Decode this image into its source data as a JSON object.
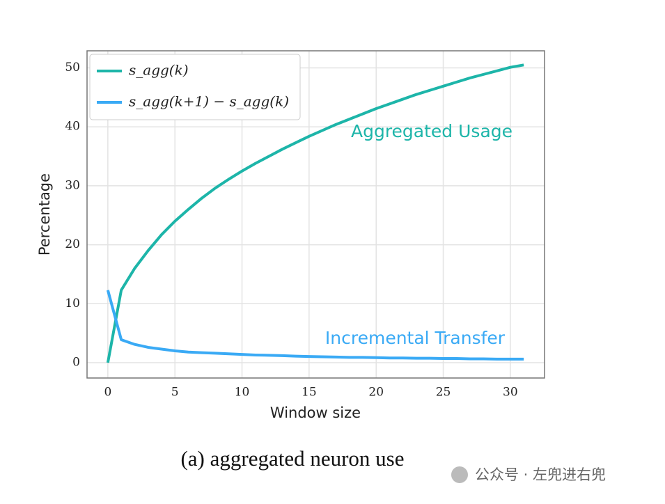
{
  "chart_data": {
    "type": "line",
    "x": [
      0,
      1,
      2,
      3,
      4,
      5,
      6,
      7,
      8,
      9,
      10,
      11,
      12,
      13,
      14,
      15,
      16,
      17,
      18,
      19,
      20,
      21,
      22,
      23,
      24,
      25,
      26,
      27,
      28,
      29,
      30,
      31
    ],
    "series": [
      {
        "name": "s_agg(k)",
        "color": "#1db5a9",
        "values": [
          0,
          12.3,
          16,
          19,
          21.7,
          24,
          26,
          27.9,
          29.6,
          31.1,
          32.5,
          33.8,
          35,
          36.2,
          37.3,
          38.4,
          39.4,
          40.4,
          41.3,
          42.2,
          43.1,
          43.9,
          44.7,
          45.5,
          46.2,
          46.9,
          47.6,
          48.3,
          48.9,
          49.5,
          50.1,
          50.5
        ]
      },
      {
        "name": "s_agg(k+1) − s_agg(k)",
        "color": "#3aaaf5",
        "values": [
          12.3,
          3.9,
          3.1,
          2.6,
          2.3,
          2.0,
          1.8,
          1.7,
          1.6,
          1.5,
          1.4,
          1.3,
          1.25,
          1.2,
          1.1,
          1.05,
          1.0,
          0.95,
          0.9,
          0.9,
          0.85,
          0.8,
          0.8,
          0.75,
          0.75,
          0.7,
          0.7,
          0.65,
          0.65,
          0.6,
          0.6,
          0.6
        ]
      }
    ],
    "xlim": [
      -1.55,
      32.55
    ],
    "xticks": [
      0,
      5,
      10,
      15,
      20,
      25,
      30
    ],
    "ylim": [
      -2.6,
      52.9
    ],
    "yticks": [
      0,
      10,
      20,
      30,
      40,
      50
    ],
    "grid": true,
    "legend": "upper left",
    "xlabel": "Window size",
    "ylabel": "Percentage",
    "annotations": [
      "Aggregated Usage",
      "Incremental Transfer"
    ],
    "caption": "(a) aggregated neuron use"
  },
  "watermark": "公众号 · 左兜进右兜"
}
